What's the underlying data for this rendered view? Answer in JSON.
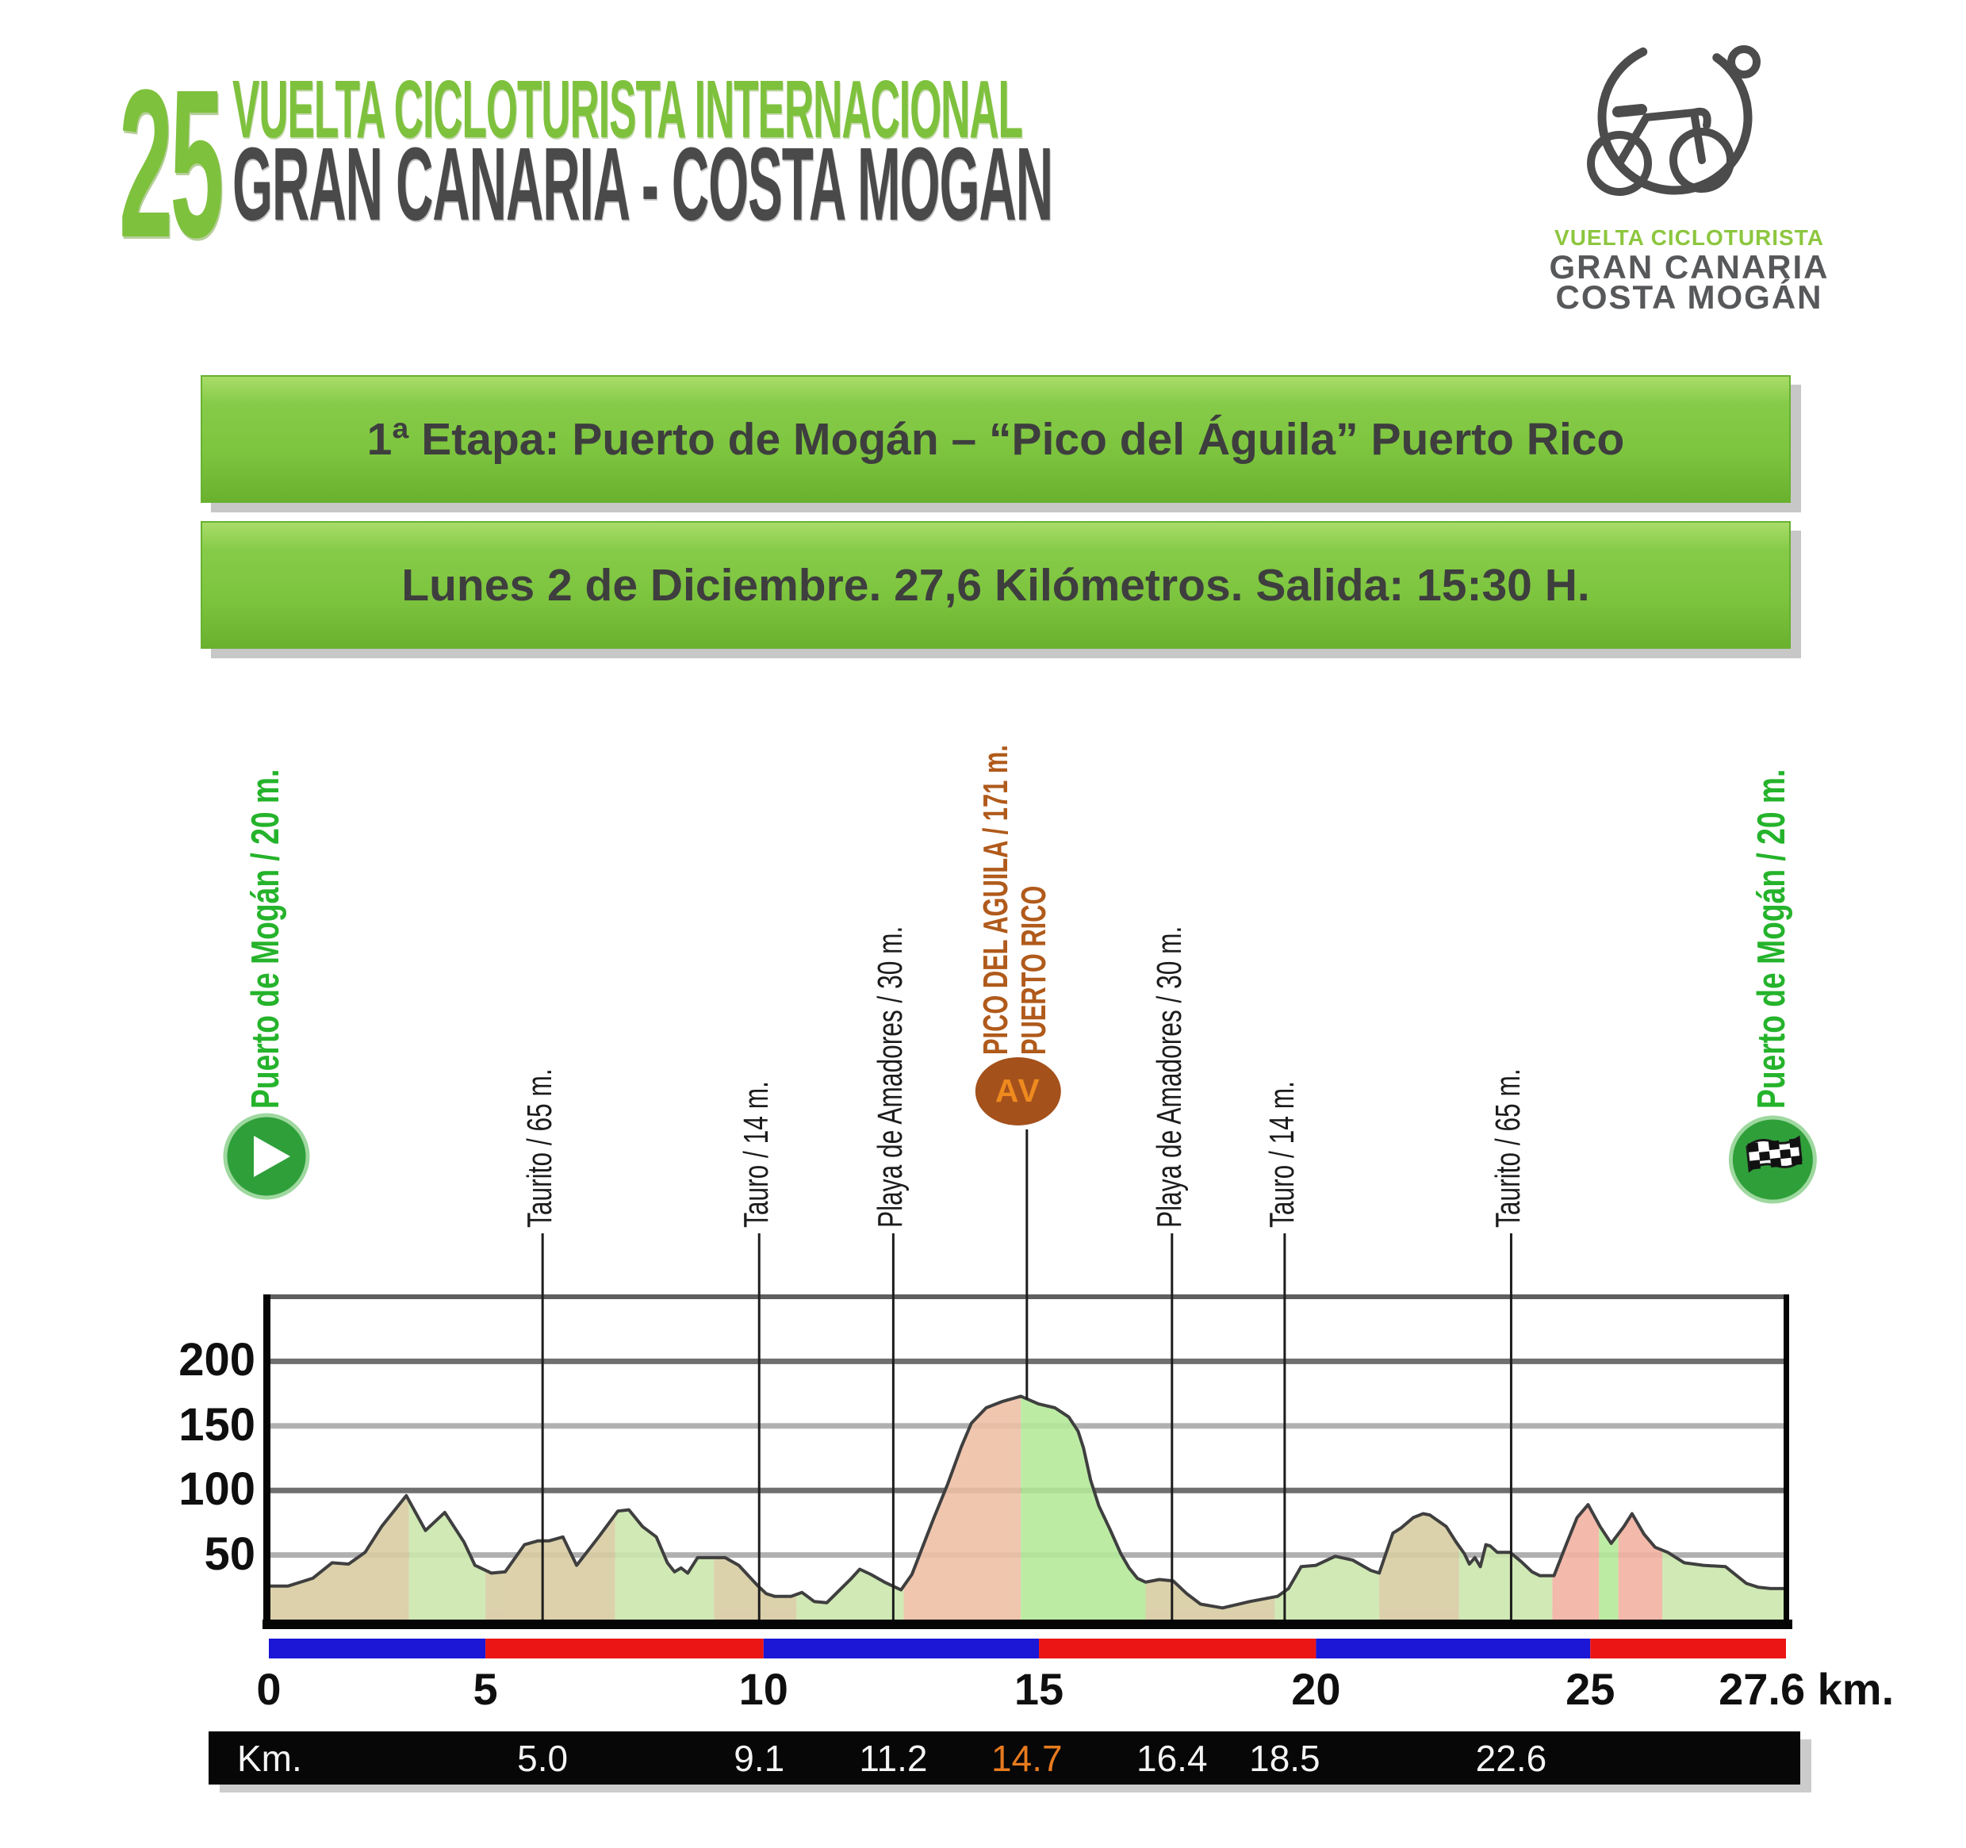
{
  "header": {
    "edition": "25",
    "title_line1": "VUELTA CICLOTURISTA INTERNACIONAL",
    "title_line2": "GRAN CANARIA - COSTA MOGAN",
    "accent_green": "#7ec13d",
    "accent_gray": "#4a4a4b",
    "logo": {
      "brand_line1": "VUELTA CICLOTURISTA",
      "brand_line2": "GRAN CANARIA",
      "brand_line3": "COSTA MOGÁN",
      "bike_icon": "bicycle-line-art"
    }
  },
  "banners": [
    {
      "text": "1ª Etapa: Puerto de Mogán – “Pico del Águila” Puerto Rico"
    },
    {
      "text": "Lunes 2 de Diciembre. 27,6 Kilómetros. Salida: 15:30 H."
    }
  ],
  "chart_data": {
    "type": "area",
    "title": "Elevation profile 1ª Etapa",
    "x_unit": "km",
    "y_unit": "m",
    "xlim": [
      0,
      27.6
    ],
    "ylim": [
      0,
      250
    ],
    "grid": "horizontal",
    "outline_color": "#3f3f3f",
    "grid_dark": "#6f6f6f",
    "grid_light": "#b0b0b0",
    "start_finish_green": "#2f9f3a",
    "av_ellipse_color": "#a4511c",
    "y_ticks": [
      {
        "label": "200",
        "m": 200,
        "shade": "dark"
      },
      {
        "label": "150",
        "m": 150,
        "shade": "light"
      },
      {
        "label": "100",
        "m": 100,
        "shade": "dark"
      },
      {
        "label": "50",
        "m": 50,
        "shade": "light"
      }
    ],
    "x_ticks": [
      {
        "label": "0",
        "km": 0
      },
      {
        "label": "5",
        "km": 3.94
      },
      {
        "label": "10",
        "km": 9.0
      },
      {
        "label": "15",
        "km": 14.01
      },
      {
        "label": "20",
        "km": 19.05
      },
      {
        "label": "25",
        "km": 24.04
      },
      {
        "label": "27.6 km.",
        "km": 27.97
      }
    ],
    "markers": [
      {
        "id": "start",
        "km": 0,
        "label": "Puerto de Mogán / 20 m.",
        "style": "green",
        "icon": "start-play-icon",
        "line": false
      },
      {
        "id": "taurito-1",
        "km": 4.98,
        "label": "Taurito  / 65 m.",
        "style": "black",
        "line": true
      },
      {
        "id": "tauro-1",
        "km": 8.92,
        "label": "Tauro / 14 m.",
        "style": "black",
        "line": true
      },
      {
        "id": "amadores-1",
        "km": 11.36,
        "label": "Playa de Amadores / 30 m.",
        "style": "black",
        "line": true
      },
      {
        "id": "pico",
        "km": 13.79,
        "label": "PICO DEL AGUILA / 171 m.",
        "label2": "PUERTO RICO",
        "style": "brown",
        "badge": "AV",
        "line": "summit"
      },
      {
        "id": "amadores-2",
        "km": 16.43,
        "label": "Playa de Amadores / 30 m.",
        "style": "black",
        "line": true
      },
      {
        "id": "tauro-2",
        "km": 18.48,
        "label": "Tauro / 14 m.",
        "style": "black",
        "line": true
      },
      {
        "id": "taurito-2",
        "km": 22.6,
        "label": "Taurito  / 65 m.",
        "style": "black",
        "line": true
      },
      {
        "id": "finish",
        "km": 27.36,
        "label": "Puerto de Mogán / 20 m.",
        "style": "green",
        "icon": "finish-flag-icon",
        "line": false
      }
    ],
    "surface_bar": {
      "blue": "#1c16d6",
      "red": "#ec1515",
      "segments": [
        {
          "from": 0,
          "to": 3.94,
          "color": "blue"
        },
        {
          "from": 3.94,
          "to": 9.0,
          "color": "red"
        },
        {
          "from": 9.0,
          "to": 14.01,
          "color": "blue"
        },
        {
          "from": 14.01,
          "to": 19.05,
          "color": "red"
        },
        {
          "from": 19.05,
          "to": 24.04,
          "color": "blue"
        },
        {
          "from": 24.04,
          "to": 27.6,
          "color": "red"
        }
      ]
    },
    "band_colors": {
      "tan": "#d8cca2",
      "green": "#cbe7ad",
      "bright_green": "#b5ea9b",
      "pink": "#eec0a6",
      "rose": "#f2b2a2"
    },
    "bands": [
      {
        "from": 0,
        "to": 2.55,
        "color": "tan"
      },
      {
        "from": 2.55,
        "to": 3.94,
        "color": "green"
      },
      {
        "from": 3.94,
        "to": 6.3,
        "color": "tan"
      },
      {
        "from": 6.3,
        "to": 8.1,
        "color": "green"
      },
      {
        "from": 8.1,
        "to": 9.6,
        "color": "tan"
      },
      {
        "from": 9.6,
        "to": 11.55,
        "color": "green"
      },
      {
        "from": 11.55,
        "to": 13.68,
        "color": "pink"
      },
      {
        "from": 13.68,
        "to": 15.95,
        "color": "bright_green"
      },
      {
        "from": 15.95,
        "to": 18.3,
        "color": "tan"
      },
      {
        "from": 18.3,
        "to": 20.2,
        "color": "green"
      },
      {
        "from": 20.2,
        "to": 21.65,
        "color": "tan"
      },
      {
        "from": 21.65,
        "to": 23.35,
        "color": "green"
      },
      {
        "from": 23.35,
        "to": 24.2,
        "color": "rose"
      },
      {
        "from": 24.2,
        "to": 24.55,
        "color": "bright_green"
      },
      {
        "from": 24.55,
        "to": 25.35,
        "color": "rose"
      },
      {
        "from": 25.35,
        "to": 27.6,
        "color": "green"
      }
    ],
    "profile": [
      [
        0,
        26
      ],
      [
        0.35,
        26
      ],
      [
        0.8,
        32
      ],
      [
        1.15,
        44
      ],
      [
        1.45,
        43
      ],
      [
        1.75,
        52
      ],
      [
        2.05,
        72
      ],
      [
        2.5,
        96
      ],
      [
        2.85,
        69
      ],
      [
        3.2,
        83
      ],
      [
        3.55,
        60
      ],
      [
        3.75,
        42
      ],
      [
        4.05,
        36
      ],
      [
        4.3,
        37
      ],
      [
        4.65,
        58
      ],
      [
        4.9,
        61
      ],
      [
        5.1,
        61
      ],
      [
        5.35,
        64
      ],
      [
        5.6,
        42
      ],
      [
        6.0,
        64
      ],
      [
        6.35,
        84
      ],
      [
        6.55,
        85
      ],
      [
        6.8,
        72
      ],
      [
        7.05,
        64
      ],
      [
        7.25,
        44
      ],
      [
        7.38,
        37
      ],
      [
        7.5,
        40
      ],
      [
        7.62,
        36
      ],
      [
        7.8,
        48
      ],
      [
        8.3,
        48
      ],
      [
        8.55,
        42
      ],
      [
        8.9,
        26
      ],
      [
        9.05,
        20
      ],
      [
        9.2,
        18
      ],
      [
        9.5,
        18
      ],
      [
        9.7,
        21
      ],
      [
        9.92,
        14
      ],
      [
        10.15,
        13
      ],
      [
        10.6,
        32
      ],
      [
        10.75,
        39
      ],
      [
        10.95,
        35
      ],
      [
        11.2,
        29
      ],
      [
        11.5,
        23
      ],
      [
        11.7,
        35
      ],
      [
        12.1,
        79
      ],
      [
        12.35,
        105
      ],
      [
        12.6,
        134
      ],
      [
        12.78,
        152
      ],
      [
        13.05,
        164
      ],
      [
        13.35,
        169
      ],
      [
        13.68,
        173
      ],
      [
        14.0,
        167
      ],
      [
        14.3,
        164
      ],
      [
        14.55,
        157
      ],
      [
        14.72,
        146
      ],
      [
        14.82,
        133
      ],
      [
        14.95,
        108
      ],
      [
        15.1,
        88
      ],
      [
        15.3,
        70
      ],
      [
        15.5,
        51
      ],
      [
        15.65,
        40
      ],
      [
        15.8,
        32
      ],
      [
        15.95,
        29
      ],
      [
        16.2,
        31
      ],
      [
        16.45,
        30
      ],
      [
        16.7,
        20
      ],
      [
        16.95,
        12
      ],
      [
        17.35,
        9
      ],
      [
        17.85,
        14
      ],
      [
        18.35,
        18
      ],
      [
        18.55,
        24
      ],
      [
        18.78,
        41
      ],
      [
        19.05,
        42
      ],
      [
        19.4,
        49
      ],
      [
        19.72,
        46
      ],
      [
        20.05,
        38
      ],
      [
        20.2,
        36
      ],
      [
        20.45,
        67
      ],
      [
        20.6,
        71
      ],
      [
        20.82,
        79
      ],
      [
        21.0,
        82
      ],
      [
        21.12,
        81
      ],
      [
        21.42,
        72
      ],
      [
        21.6,
        60
      ],
      [
        21.75,
        51
      ],
      [
        21.84,
        43
      ],
      [
        21.94,
        48
      ],
      [
        22.04,
        41
      ],
      [
        22.14,
        58
      ],
      [
        22.22,
        57
      ],
      [
        22.35,
        52
      ],
      [
        22.58,
        52
      ],
      [
        22.78,
        45
      ],
      [
        22.98,
        37
      ],
      [
        23.12,
        34
      ],
      [
        23.38,
        34
      ],
      [
        23.62,
        60
      ],
      [
        23.8,
        79
      ],
      [
        24.0,
        89
      ],
      [
        24.22,
        72
      ],
      [
        24.42,
        59
      ],
      [
        24.65,
        72
      ],
      [
        24.8,
        82
      ],
      [
        25.02,
        66
      ],
      [
        25.22,
        56
      ],
      [
        25.45,
        52
      ],
      [
        25.75,
        44
      ],
      [
        26.1,
        42
      ],
      [
        26.5,
        41
      ],
      [
        26.88,
        28
      ],
      [
        27.1,
        25
      ],
      [
        27.32,
        24
      ],
      [
        27.6,
        24
      ]
    ]
  },
  "km_table": {
    "label": "Km.",
    "highlight_color": "#e87b1e",
    "values": [
      {
        "text": "5.0",
        "km": 4.98,
        "highlight": false
      },
      {
        "text": "9.1",
        "km": 8.92,
        "highlight": false
      },
      {
        "text": "11.2",
        "km": 11.36,
        "highlight": false
      },
      {
        "text": "14.7",
        "km": 13.79,
        "highlight": true
      },
      {
        "text": "16.4",
        "km": 16.43,
        "highlight": false
      },
      {
        "text": "18.5",
        "km": 18.48,
        "highlight": false
      },
      {
        "text": "22.6",
        "km": 22.6,
        "highlight": false
      }
    ]
  }
}
